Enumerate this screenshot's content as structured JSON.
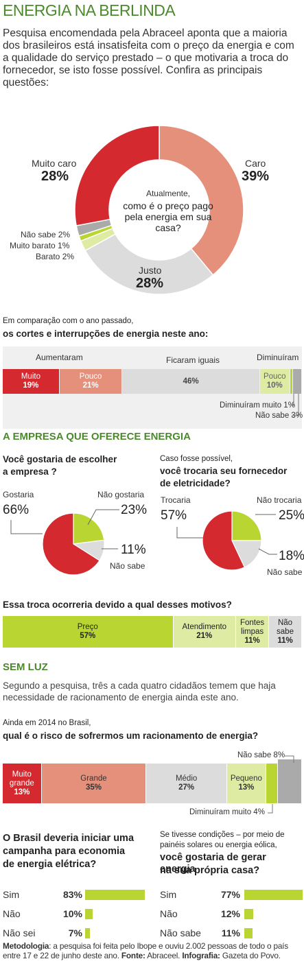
{
  "colors": {
    "red": "#d42a2f",
    "salmon": "#e5907a",
    "gray": "#dcdcdc",
    "darkgray": "#aaaaaa",
    "green": "#b9d531",
    "lightgreen": "#deeba3",
    "title": "#4a8a2a"
  },
  "title": "ENERGIA NA BERLINDA",
  "intro": "Pesquisa encomendada pela Abraceel aponta que a maioria dos brasileiros está insatisfeita com o preço da energia e com a qualidade do serviço prestado – o que motivaria a troca do fornecedor, se isto fosse possível. Confira as principais questões:",
  "chart_data": [
    {
      "type": "pie",
      "id": "donut",
      "center_small": "Atualmente,",
      "center_big": "como é o preço pago pela energia em sua casa?",
      "labels": [
        "Caro",
        "Justo",
        "Barato",
        "Muito barato",
        "Não sabe",
        "Muito caro"
      ],
      "values": [
        39,
        28,
        2,
        1,
        2,
        28
      ],
      "label_caro": "Caro",
      "pct_caro": "39%",
      "label_justo": "Justo",
      "pct_justo": "28%",
      "label_muitocaro": "Muito caro",
      "pct_muitocaro": "28%",
      "label_naosabe": "Não sabe 2%",
      "label_muitobarato": "Muito barato 1%",
      "label_barato": "Barato 2%"
    },
    {
      "type": "bar",
      "id": "cortes",
      "q_small": "Em comparação com o ano passado,",
      "q_big": "os cortes e interrupções de energia neste ano:",
      "group_aumentaram": "Aumentaram",
      "group_iguais": "Ficaram iguais",
      "group_diminuiram": "Diminuíram",
      "categories": [
        "Muito",
        "Pouco",
        "",
        "Pouco",
        "",
        ""
      ],
      "values": [
        19,
        21,
        46,
        10,
        1,
        3
      ],
      "pct_labels": [
        "19%",
        "21%",
        "46%",
        "10%",
        "",
        ""
      ],
      "note_dim_muito": "Diminuíram muito 1%",
      "note_naosabe": "Não sabe 3%"
    },
    {
      "type": "pie",
      "id": "escolher",
      "question_line1": "Você gostaria de escolher",
      "question_line2": "a empresa ?",
      "labels": [
        "Gostaria",
        "Não gostaria",
        "Não sabe"
      ],
      "values": [
        66,
        23,
        11
      ],
      "pct": [
        "66%",
        "23%",
        "11%"
      ]
    },
    {
      "type": "pie",
      "id": "trocaria",
      "question_small": "Caso fosse possível,",
      "question_line1": "você trocaria seu fornecedor",
      "question_line2": "de eletricidade?",
      "labels": [
        "Trocaria",
        "Não trocaria",
        "Não sabe"
      ],
      "values": [
        57,
        25,
        18
      ],
      "pct": [
        "57%",
        "25%",
        "18%"
      ]
    },
    {
      "type": "bar",
      "id": "motivos",
      "question": "Essa troca ocorreria devido a qual desses motivos?",
      "categories": [
        "Preço",
        "Atendimento",
        "Fontes limpas",
        "Não sabe"
      ],
      "values": [
        57,
        21,
        11,
        11
      ],
      "pct": [
        "57%",
        "21%",
        "11%",
        "11%"
      ]
    },
    {
      "type": "bar",
      "id": "risco",
      "q_small": "Ainda em 2014 no Brasil,",
      "q_big": "qual é o risco de sofrermos um racionamento de energia?",
      "categories": [
        "Muito grande",
        "Grande",
        "Médio",
        "Pequeno",
        "",
        ""
      ],
      "values": [
        13,
        35,
        27,
        13,
        4,
        8
      ],
      "pct": [
        "13%",
        "35%",
        "27%",
        "13%",
        "",
        ""
      ],
      "note_naosabe": "Não sabe 8%",
      "note_dim": "Diminuíram muito 4%"
    },
    {
      "type": "bar",
      "id": "campanha",
      "question_line1": "O Brasil deveria iniciar uma",
      "question_line2": "campanha para economia",
      "question_line3": "de energia elétrica?",
      "categories": [
        "Sim",
        "Não",
        "Não sei"
      ],
      "values": [
        83,
        10,
        7
      ],
      "pct": [
        "83%",
        "10%",
        "7%"
      ]
    },
    {
      "type": "bar",
      "id": "gerar",
      "question_small1": "Se tivesse condições – por meio de",
      "question_small2": "painéis solares ou energia eólica,",
      "question_line1": "você gostaria de gerar energia",
      "question_line2": "na sua própria casa?",
      "categories": [
        "Sim",
        "Não",
        "Não sabe"
      ],
      "values": [
        77,
        12,
        11
      ],
      "pct": [
        "77%",
        "12%",
        "11%"
      ]
    }
  ],
  "section_empresa": "A EMPRESA QUE OFERECE ENERGIA",
  "section_semluz": "SEM LUZ",
  "semluz_text": "Segundo a pesquisa, três a cada quatro cidadãos temem que haja necessidade de racionamento de energia ainda este ano.",
  "footer": {
    "met_label": "Metodologia",
    "met_text": ": a pesquisa foi feita pelo Ibope e ouviu 2.002 pessoas de todo o país entre 17 e 22 de junho deste ano. ",
    "fonte_label": "Fonte:",
    "fonte_text": " Abraceel. ",
    "info_label": "Infografia:",
    "info_text": " Gazeta do Povo."
  }
}
